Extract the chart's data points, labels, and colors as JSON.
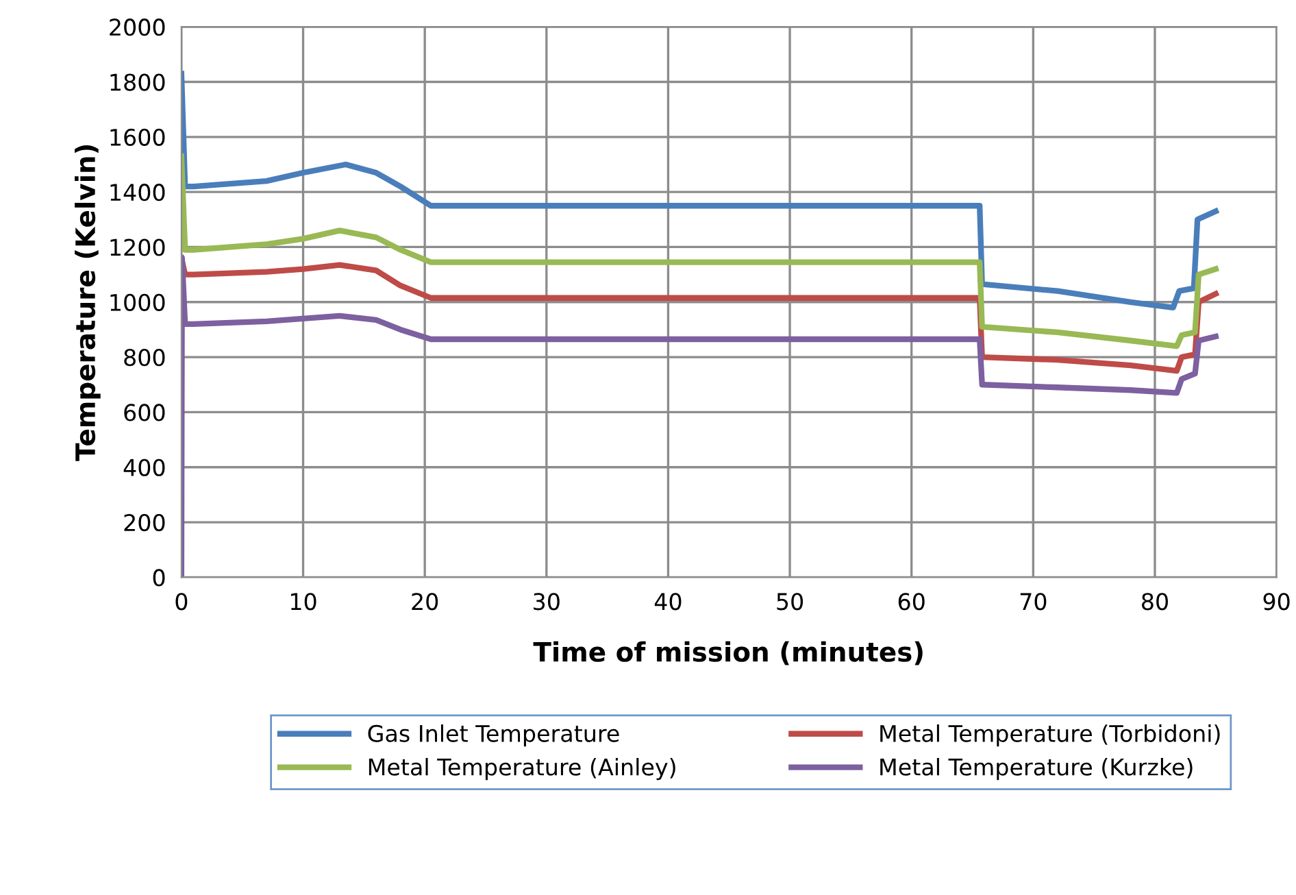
{
  "chart_data": {
    "type": "line",
    "xlabel": "Time of mission (minutes)",
    "ylabel": "Temperature (Kelvin)",
    "xlim": [
      0,
      90
    ],
    "xticks": [
      0,
      10,
      20,
      30,
      40,
      50,
      60,
      70,
      80,
      90
    ],
    "ylim": [
      0,
      2000
    ],
    "yticks": [
      0,
      200,
      400,
      600,
      800,
      1000,
      1200,
      1400,
      1600,
      1800,
      2000
    ],
    "grid": true,
    "legend": "bottom",
    "marker": "none",
    "line_style": "solid",
    "series": [
      {
        "name": "Gas Inlet Temperature",
        "color": "#4a7ebb",
        "x": [
          0,
          0.3,
          1,
          7,
          10,
          13.5,
          16,
          18,
          20.5,
          40,
          65.6,
          65.8,
          72,
          78,
          81.5,
          82,
          83.2,
          83.5,
          85
        ],
        "values": [
          1830,
          1420,
          1420,
          1440,
          1470,
          1500,
          1470,
          1420,
          1350,
          1350,
          1350,
          1065,
          1040,
          1000,
          980,
          1040,
          1050,
          1300,
          1330
        ]
      },
      {
        "name": "Metal Temperature (Torbidoni)",
        "color": "#be4b48",
        "x": [
          0,
          0.3,
          1,
          7,
          10,
          13,
          16,
          18,
          20.5,
          40,
          65.6,
          65.8,
          72,
          78,
          81.8,
          82.2,
          83.3,
          83.6,
          85
        ],
        "values": [
          1160,
          1100,
          1100,
          1110,
          1120,
          1135,
          1115,
          1060,
          1015,
          1015,
          1015,
          800,
          790,
          770,
          750,
          800,
          810,
          1000,
          1030
        ]
      },
      {
        "name": "Metal Temperature (Ainley)",
        "color": "#98b954",
        "x": [
          0,
          0.3,
          1,
          7,
          10,
          13,
          16,
          18,
          20.5,
          40,
          65.6,
          65.8,
          72,
          78,
          81.8,
          82.2,
          83.3,
          83.6,
          85
        ],
        "values": [
          1530,
          1190,
          1190,
          1210,
          1230,
          1260,
          1235,
          1190,
          1145,
          1145,
          1145,
          910,
          890,
          860,
          840,
          880,
          890,
          1100,
          1120
        ]
      },
      {
        "name": "Metal Temperature (Kurzke)",
        "color": "#7d60a0",
        "x": [
          0,
          0.05,
          0.3,
          1,
          7,
          10,
          13,
          16,
          18,
          20.5,
          40,
          65.6,
          65.8,
          72,
          78,
          81.8,
          82.2,
          83.3,
          83.6,
          85
        ],
        "values": [
          0,
          1160,
          920,
          920,
          930,
          940,
          950,
          935,
          900,
          865,
          865,
          865,
          700,
          690,
          680,
          670,
          720,
          740,
          860,
          875
        ]
      }
    ]
  }
}
